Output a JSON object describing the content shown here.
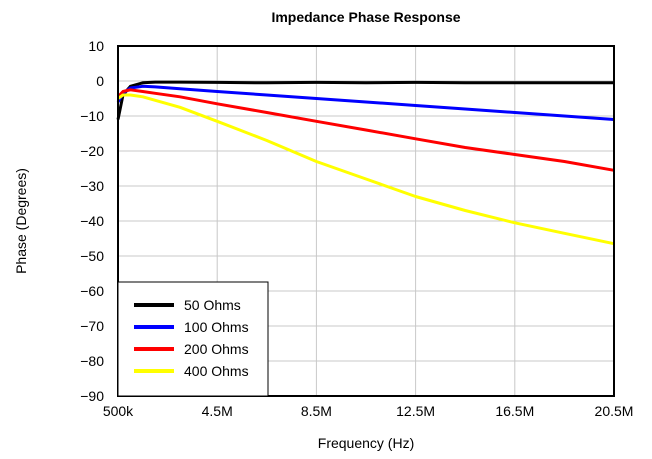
{
  "chart_data": {
    "type": "line",
    "title": "Impedance Phase Response",
    "xlabel": "Frequency (Hz)",
    "ylabel": "Phase (Degrees)",
    "xlim": [
      0.5,
      20.5
    ],
    "ylim": [
      -90,
      10
    ],
    "x_ticks": [
      0.5,
      4.5,
      8.5,
      12.5,
      16.5,
      20.5
    ],
    "x_tick_labels": [
      "500k",
      "4.5M",
      "8.5M",
      "12.5M",
      "16.5M",
      "20.5M"
    ],
    "y_ticks": [
      10,
      0,
      -10,
      -20,
      -30,
      -40,
      -50,
      -60,
      -70,
      -80,
      -90
    ],
    "y_tick_labels": [
      "10",
      "0",
      "−10",
      "−20",
      "−30",
      "−40",
      "−50",
      "−60",
      "−70",
      "−80",
      "−90"
    ],
    "grid": true,
    "legend_position": "bottom-left",
    "series": [
      {
        "name": "50 Ohms",
        "color": "#000000",
        "x": [
          0.5,
          0.7,
          1.0,
          1.5,
          2.0,
          3.0,
          4.5,
          6.5,
          8.5,
          10.5,
          12.5,
          14.5,
          16.5,
          18.5,
          20.5
        ],
        "y": [
          -11,
          -4,
          -1.5,
          -0.5,
          -0.3,
          -0.3,
          -0.4,
          -0.5,
          -0.4,
          -0.5,
          -0.4,
          -0.5,
          -0.5,
          -0.5,
          -0.5
        ]
      },
      {
        "name": "100 Ohms",
        "color": "#0000ff",
        "x": [
          0.5,
          0.7,
          1.0,
          1.5,
          2.0,
          3.0,
          4.5,
          6.5,
          8.5,
          10.5,
          12.5,
          14.5,
          16.5,
          18.5,
          20.5
        ],
        "y": [
          -6,
          -3.5,
          -2,
          -1.5,
          -1.7,
          -2.2,
          -3.0,
          -4.0,
          -5.0,
          -6.0,
          -7.0,
          -8.0,
          -9.0,
          -10.0,
          -11.0
        ]
      },
      {
        "name": "200 Ohms",
        "color": "#ff0000",
        "x": [
          0.5,
          0.7,
          1.0,
          1.5,
          2.0,
          3.0,
          4.5,
          6.5,
          8.5,
          10.5,
          12.5,
          14.5,
          16.5,
          18.5,
          20.5
        ],
        "y": [
          -4.5,
          -3,
          -2.5,
          -3,
          -3.5,
          -4.5,
          -6.5,
          -9,
          -11.5,
          -14,
          -16.5,
          -19,
          -21,
          -23,
          -25.5
        ]
      },
      {
        "name": "400 Ohms",
        "color": "#ffff00",
        "x": [
          0.5,
          0.7,
          1.0,
          1.5,
          2.0,
          3.0,
          4.5,
          6.5,
          8.5,
          10.5,
          12.5,
          14.5,
          16.5,
          18.5,
          20.5
        ],
        "y": [
          -5,
          -4,
          -4,
          -4.5,
          -5.5,
          -7.5,
          -11.5,
          -17,
          -23,
          -28,
          -33,
          -37,
          -40.5,
          -43.5,
          -46.5
        ]
      }
    ]
  }
}
